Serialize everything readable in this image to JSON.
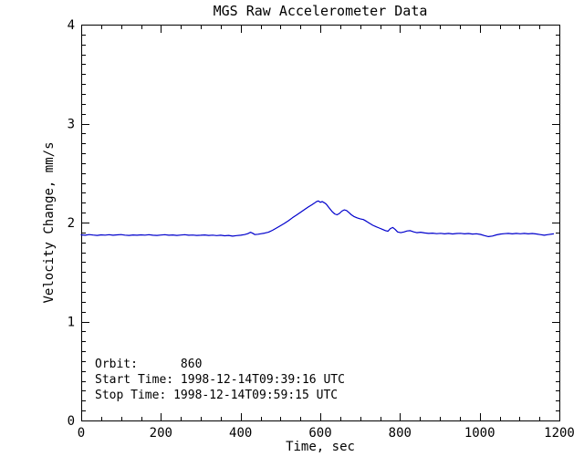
{
  "window": {
    "background": "#ffffff",
    "text_color": "#000000"
  },
  "chart_data": {
    "type": "line",
    "title": "MGS Raw Accelerometer Data",
    "xlabel": "Time, sec",
    "ylabel": "Velocity Change, mm/s",
    "xlim": [
      0,
      1200
    ],
    "ylim": [
      0,
      4
    ],
    "x_major_ticks": [
      0,
      200,
      400,
      600,
      800,
      1000,
      1200
    ],
    "x_minor_step": 50,
    "y_major_ticks": [
      0,
      1,
      2,
      3,
      4
    ],
    "y_minor_step": 0.1,
    "grid": false,
    "legend": "none",
    "line_color": "#0000cc",
    "axis_color": "#000000",
    "description": "Flat baseline near 1.87 mm/s, broad atmospheric-drag peak reaching ~2.22 mm/s near t=595 s with a secondary bump ~2.13 at t=660 s, returning to ~1.89 baseline",
    "series": [
      {
        "name": "Velocity Change",
        "x": [
          0,
          10,
          20,
          30,
          40,
          50,
          60,
          70,
          80,
          90,
          100,
          110,
          120,
          130,
          140,
          150,
          160,
          170,
          180,
          190,
          200,
          210,
          220,
          230,
          240,
          250,
          260,
          270,
          280,
          290,
          300,
          310,
          320,
          330,
          340,
          350,
          360,
          370,
          380,
          390,
          400,
          410,
          418,
          425,
          430,
          436,
          444,
          452,
          460,
          470,
          480,
          490,
          500,
          510,
          520,
          530,
          540,
          550,
          560,
          570,
          578,
          585,
          590,
          595,
          600,
          605,
          610,
          615,
          620,
          625,
          630,
          636,
          642,
          648,
          654,
          660,
          666,
          672,
          678,
          684,
          692,
          700,
          708,
          716,
          724,
          732,
          740,
          748,
          756,
          764,
          770,
          776,
          782,
          788,
          794,
          802,
          810,
          818,
          826,
          834,
          842,
          852,
          862,
          872,
          882,
          892,
          902,
          912,
          922,
          932,
          942,
          952,
          962,
          972,
          982,
          992,
          1002,
          1012,
          1022,
          1032,
          1042,
          1052,
          1062,
          1072,
          1082,
          1092,
          1102,
          1112,
          1122,
          1132,
          1142,
          1152,
          1162,
          1172,
          1185
        ],
        "y": [
          1.876,
          1.872,
          1.878,
          1.874,
          1.87,
          1.876,
          1.873,
          1.877,
          1.872,
          1.876,
          1.878,
          1.873,
          1.87,
          1.875,
          1.872,
          1.876,
          1.873,
          1.877,
          1.872,
          1.87,
          1.874,
          1.877,
          1.872,
          1.875,
          1.87,
          1.874,
          1.877,
          1.872,
          1.874,
          1.87,
          1.872,
          1.875,
          1.87,
          1.873,
          1.868,
          1.872,
          1.866,
          1.87,
          1.863,
          1.868,
          1.872,
          1.878,
          1.888,
          1.902,
          1.892,
          1.878,
          1.882,
          1.888,
          1.893,
          1.902,
          1.922,
          1.945,
          1.968,
          1.992,
          2.018,
          2.048,
          2.075,
          2.102,
          2.13,
          2.158,
          2.178,
          2.195,
          2.21,
          2.218,
          2.205,
          2.212,
          2.2,
          2.186,
          2.16,
          2.135,
          2.11,
          2.088,
          2.078,
          2.092,
          2.115,
          2.128,
          2.122,
          2.1,
          2.078,
          2.062,
          2.048,
          2.038,
          2.03,
          2.012,
          1.992,
          1.972,
          1.958,
          1.945,
          1.932,
          1.918,
          1.912,
          1.94,
          1.95,
          1.93,
          1.905,
          1.898,
          1.905,
          1.915,
          1.918,
          1.906,
          1.898,
          1.902,
          1.895,
          1.89,
          1.893,
          1.888,
          1.891,
          1.886,
          1.89,
          1.885,
          1.889,
          1.891,
          1.886,
          1.889,
          1.884,
          1.887,
          1.88,
          1.868,
          1.858,
          1.864,
          1.876,
          1.884,
          1.888,
          1.89,
          1.886,
          1.89,
          1.887,
          1.89,
          1.886,
          1.889,
          1.885,
          1.878,
          1.872,
          1.878,
          1.886
        ]
      }
    ]
  },
  "annotations": {
    "lines": [
      "Orbit:      860",
      "Start Time: 1998-12-14T09:39:16 UTC",
      "Stop Time: 1998-12-14T09:59:15 UTC"
    ]
  }
}
